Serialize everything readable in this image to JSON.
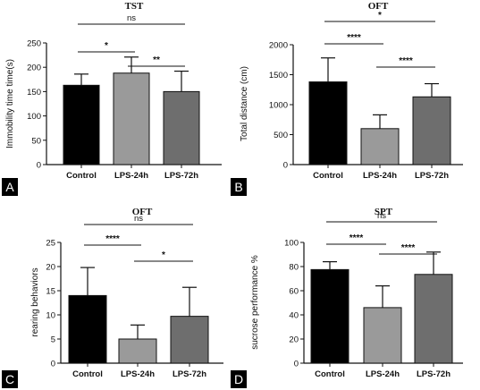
{
  "chart_data": [
    {
      "panel": "A",
      "type": "bar",
      "title": "TST",
      "ylabel": "Immobility time time(s)",
      "categories": [
        "Control",
        "LPS-24h",
        "LPS-72h"
      ],
      "values": [
        163,
        188,
        150
      ],
      "errors": [
        23,
        33,
        42
      ],
      "colors": [
        "#000000",
        "#9a9a9a",
        "#6e6e6e"
      ],
      "ylim": [
        0,
        250
      ],
      "yticks": [
        0,
        50,
        100,
        150,
        200,
        250
      ],
      "comparisons": [
        {
          "from": 0,
          "to": 2,
          "label": "ns"
        },
        {
          "from": 0,
          "to": 1,
          "label": "*"
        },
        {
          "from": 1,
          "to": 2,
          "label": "**"
        }
      ]
    },
    {
      "panel": "B",
      "type": "bar",
      "title": "OFT",
      "ylabel": "Total distance (cm)",
      "categories": [
        "Control",
        "LPS-24h",
        "LPS-72h"
      ],
      "values": [
        1380,
        600,
        1130
      ],
      "errors": [
        400,
        230,
        220
      ],
      "colors": [
        "#000000",
        "#9a9a9a",
        "#6e6e6e"
      ],
      "ylim": [
        0,
        2000
      ],
      "yticks": [
        0,
        500,
        1000,
        1500,
        2000
      ],
      "comparisons": [
        {
          "from": 0,
          "to": 2,
          "label": "*"
        },
        {
          "from": 0,
          "to": 1,
          "label": "****"
        },
        {
          "from": 1,
          "to": 2,
          "label": "****"
        }
      ]
    },
    {
      "panel": "C",
      "type": "bar",
      "title": "OFT",
      "ylabel": "rearing behaviors",
      "categories": [
        "Control",
        "LPS-24h",
        "LPS-72h"
      ],
      "values": [
        14,
        5,
        9.7
      ],
      "errors": [
        5.8,
        2.9,
        6
      ],
      "colors": [
        "#000000",
        "#9a9a9a",
        "#6e6e6e"
      ],
      "ylim": [
        0,
        25
      ],
      "yticks": [
        0,
        5,
        10,
        15,
        20,
        25
      ],
      "comparisons": [
        {
          "from": 0,
          "to": 2,
          "label": "ns"
        },
        {
          "from": 0,
          "to": 1,
          "label": "****"
        },
        {
          "from": 1,
          "to": 2,
          "label": "*"
        }
      ]
    },
    {
      "panel": "D",
      "type": "bar",
      "title": "SPT",
      "ylabel": "sucrose performance %",
      "categories": [
        "Control",
        "LPS-24h",
        "LPS-72h"
      ],
      "values": [
        77.5,
        46,
        73.5
      ],
      "errors": [
        6.5,
        18,
        18.5
      ],
      "colors": [
        "#000000",
        "#9a9a9a",
        "#6e6e6e"
      ],
      "ylim": [
        0,
        100
      ],
      "yticks": [
        0,
        20,
        40,
        60,
        80,
        100
      ],
      "comparisons": [
        {
          "from": 0,
          "to": 2,
          "label": "ns"
        },
        {
          "from": 0,
          "to": 1,
          "label": "****"
        },
        {
          "from": 1,
          "to": 2,
          "label": "****"
        }
      ]
    }
  ]
}
